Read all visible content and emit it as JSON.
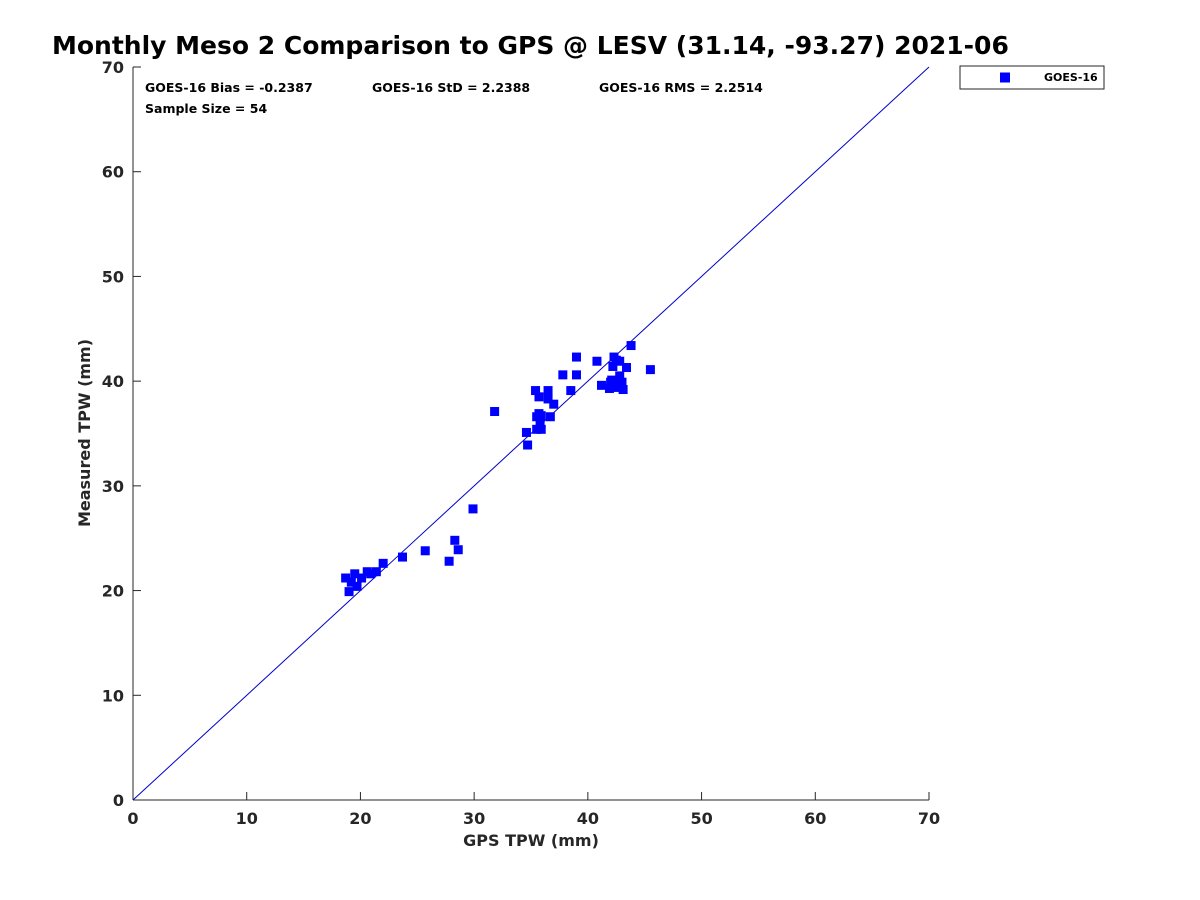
{
  "chart_data": {
    "type": "scatter",
    "title": "Monthly Meso 2 Comparison to GPS @ LESV (31.14, -93.27) 2021-06",
    "xlabel": "GPS TPW (mm)",
    "ylabel": "Measured TPW (mm)",
    "xlim": [
      0,
      70
    ],
    "ylim": [
      0,
      70
    ],
    "xticks": [
      "0",
      "10",
      "20",
      "30",
      "40",
      "50",
      "60",
      "70"
    ],
    "yticks": [
      "0",
      "10",
      "20",
      "30",
      "40",
      "50",
      "60",
      "70"
    ],
    "grid": false,
    "legend": {
      "position": "outside-top-right",
      "entries": [
        "GOES-16"
      ]
    },
    "annotations": {
      "bias": "GOES-16 Bias = -0.2387",
      "std": "GOES-16 StD = 2.2388",
      "rms": "GOES-16 RMS = 2.2514",
      "sample": "Sample Size = 54"
    },
    "reference_line": {
      "label": "1:1",
      "from": [
        0,
        0
      ],
      "to": [
        70,
        70
      ],
      "color": "#0000cc"
    },
    "series": [
      {
        "name": "GOES-16",
        "color": "#0000ff",
        "marker": "square",
        "points": [
          [
            18.7,
            21.2
          ],
          [
            19.0,
            19.9
          ],
          [
            19.2,
            20.8
          ],
          [
            19.5,
            21.6
          ],
          [
            19.7,
            20.4
          ],
          [
            20.1,
            21.2
          ],
          [
            20.6,
            21.8
          ],
          [
            20.9,
            21.6
          ],
          [
            21.4,
            21.8
          ],
          [
            22.0,
            22.6
          ],
          [
            23.7,
            23.2
          ],
          [
            25.7,
            23.8
          ],
          [
            27.8,
            22.8
          ],
          [
            28.3,
            24.8
          ],
          [
            28.6,
            23.9
          ],
          [
            29.9,
            27.8
          ],
          [
            31.8,
            37.1
          ],
          [
            34.6,
            35.1
          ],
          [
            34.7,
            33.9
          ],
          [
            35.4,
            39.1
          ],
          [
            35.5,
            35.4
          ],
          [
            35.5,
            36.6
          ],
          [
            35.7,
            36.9
          ],
          [
            35.7,
            38.5
          ],
          [
            35.8,
            35.9
          ],
          [
            35.9,
            35.4
          ],
          [
            35.9,
            36.7
          ],
          [
            36.5,
            39.1
          ],
          [
            36.5,
            38.3
          ],
          [
            36.7,
            36.6
          ],
          [
            37.0,
            37.8
          ],
          [
            37.8,
            40.6
          ],
          [
            38.5,
            39.1
          ],
          [
            39.0,
            42.3
          ],
          [
            39.0,
            40.6
          ],
          [
            40.8,
            41.9
          ],
          [
            41.2,
            39.6
          ],
          [
            41.9,
            39.3
          ],
          [
            42.0,
            39.9
          ],
          [
            42.1,
            40.1
          ],
          [
            42.2,
            41.4
          ],
          [
            42.3,
            42.3
          ],
          [
            42.4,
            39.4
          ],
          [
            42.5,
            39.9
          ],
          [
            42.6,
            39.6
          ],
          [
            42.7,
            40.0
          ],
          [
            42.8,
            40.5
          ],
          [
            42.8,
            41.9
          ],
          [
            43.0,
            39.9
          ],
          [
            43.1,
            39.2
          ],
          [
            43.4,
            41.3
          ],
          [
            43.8,
            43.4
          ],
          [
            45.5,
            41.1
          ],
          [
            42.5,
            42.0
          ]
        ]
      }
    ]
  }
}
